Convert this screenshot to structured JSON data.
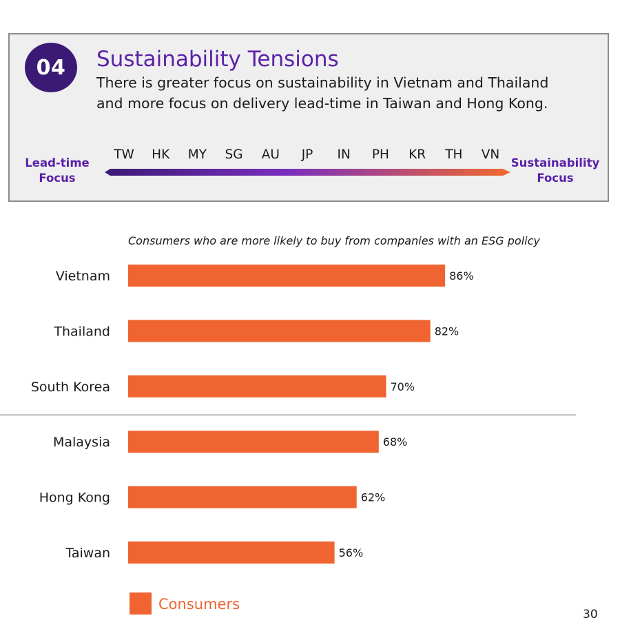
{
  "header": {
    "badge": "04",
    "title": "Sustainability Tensions",
    "subtitle_line1": "There is greater focus on sustainability in Vietnam and Thailand",
    "subtitle_line2": "and more focus on delivery lead-time in Taiwan and Hong Kong.",
    "scale": {
      "left_label_line1": "Lead-time",
      "left_label_line2": "Focus",
      "right_label_line1": "Sustainability",
      "right_label_line2": "Focus",
      "codes": [
        "TW",
        "HK",
        "MY",
        "SG",
        "AU",
        "JP",
        "IN",
        "PH",
        "KR",
        "TH",
        "VN"
      ],
      "gradient_colors": [
        "#3b1a75",
        "#7a2fbd",
        "#f26a2e"
      ]
    }
  },
  "chart_data": {
    "type": "bar",
    "orientation": "horizontal",
    "title": "Consumers who are more likely to buy from companies with an ESG policy",
    "categories": [
      "Vietnam",
      "Thailand",
      "South Korea",
      "Malaysia",
      "Hong Kong",
      "Taiwan"
    ],
    "series": [
      {
        "name": "Consumers",
        "values": [
          86,
          82,
          70,
          68,
          62,
          56
        ],
        "color": "#ef6431"
      }
    ],
    "value_labels": [
      "86%",
      "82%",
      "70%",
      "68%",
      "62%",
      "56%"
    ],
    "xlim": [
      0,
      100
    ],
    "divider_after_index": 2,
    "legend": {
      "label": "Consumers",
      "position": "bottom-left"
    }
  },
  "page_number": "30"
}
